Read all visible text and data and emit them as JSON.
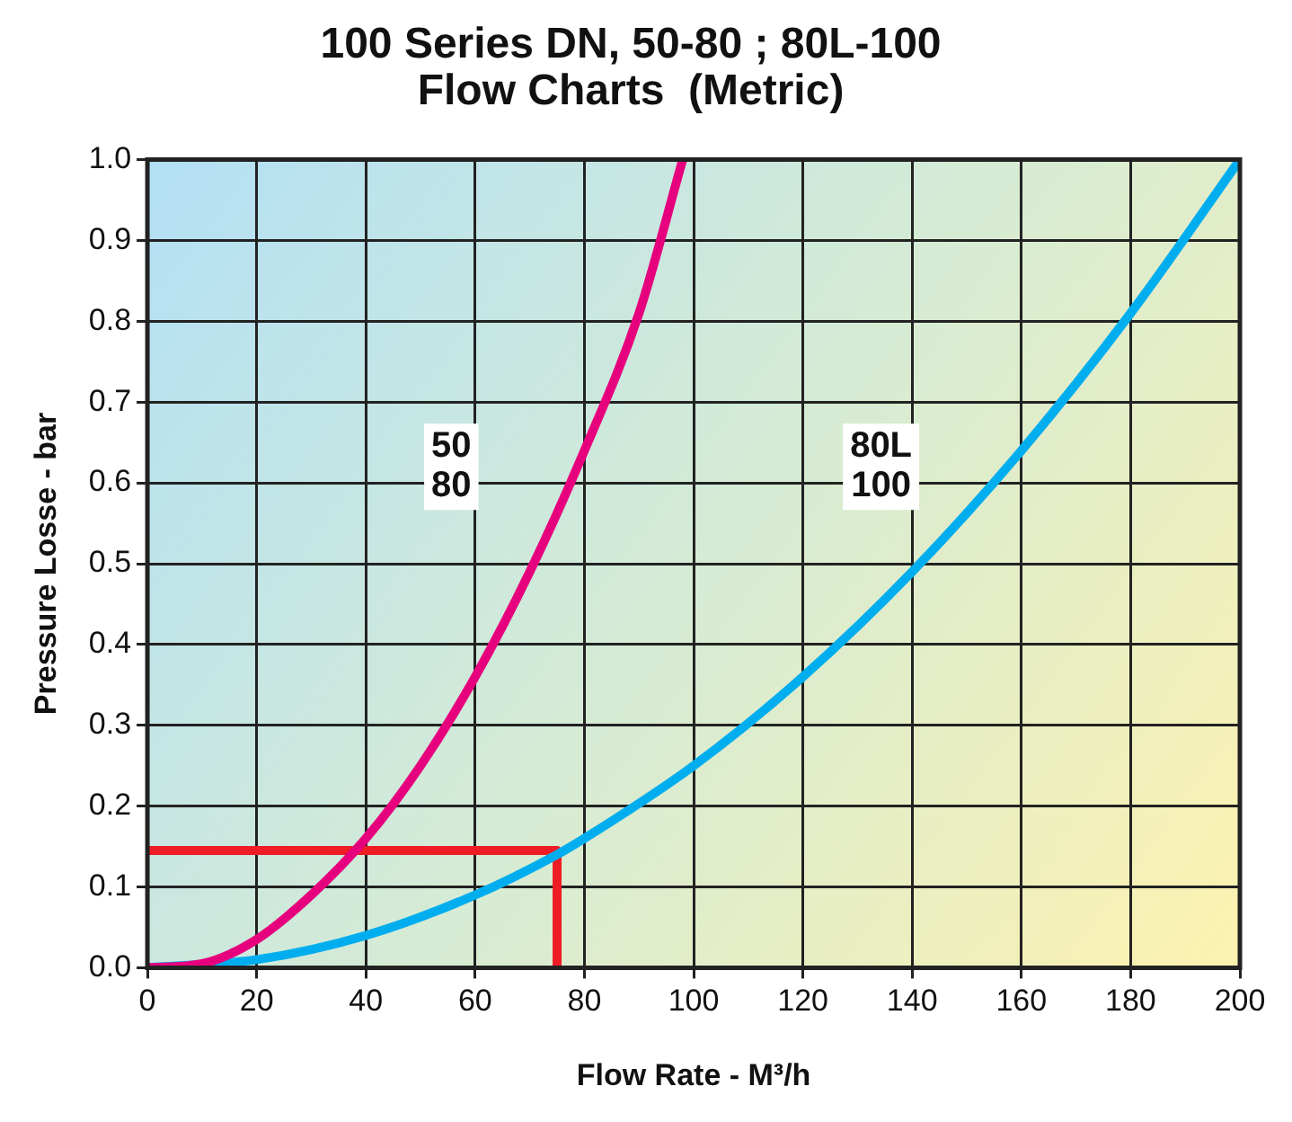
{
  "chart_data": {
    "type": "line",
    "title": "100 Series DN, 50-80 ; 80L-100\nFlow Charts  (Metric)",
    "xlabel": "Flow Rate - M³/h",
    "ylabel": "Pressure Losse - bar",
    "xlim": [
      0,
      200
    ],
    "ylim": [
      0,
      1.0
    ],
    "xticks": [
      0,
      20,
      40,
      60,
      80,
      100,
      120,
      140,
      160,
      180,
      200
    ],
    "yticks": [
      {
        "value": 0,
        "label": "0.0"
      },
      {
        "value": 0.1,
        "label": "0.1"
      },
      {
        "value": 0.2,
        "label": "0.2"
      },
      {
        "value": 0.3,
        "label": "0.3"
      },
      {
        "value": 0.4,
        "label": "0.4"
      },
      {
        "value": 0.5,
        "label": "0.5"
      },
      {
        "value": 0.6,
        "label": "0.6"
      },
      {
        "value": 0.7,
        "label": "0.7"
      },
      {
        "value": 0.8,
        "label": "0.8"
      },
      {
        "value": 0.9,
        "label": "0.9"
      },
      {
        "value": 1.0,
        "label": "1.0"
      }
    ],
    "grid": true,
    "legend": false,
    "marker": "none",
    "line_style": "solid",
    "series": [
      {
        "name": "50\n80",
        "color": "#e6007e",
        "x": [
          0,
          10,
          20,
          30,
          40,
          50,
          60,
          70,
          80,
          90,
          98
        ],
        "values": [
          0,
          0.005,
          0.035,
          0.09,
          0.16,
          0.25,
          0.36,
          0.49,
          0.64,
          0.81,
          1.0
        ]
      },
      {
        "name": "80L\n100",
        "color": "#00aeef",
        "x": [
          0,
          20,
          40,
          60,
          75,
          80,
          100,
          120,
          140,
          160,
          180,
          200
        ],
        "values": [
          0,
          0.01,
          0.04,
          0.09,
          0.14,
          0.16,
          0.25,
          0.36,
          0.49,
          0.64,
          0.81,
          1.0
        ]
      },
      {
        "color": "#ee1c25",
        "x": [
          0,
          75,
          75
        ],
        "values": [
          0.145,
          0.145,
          0
        ]
      }
    ]
  }
}
